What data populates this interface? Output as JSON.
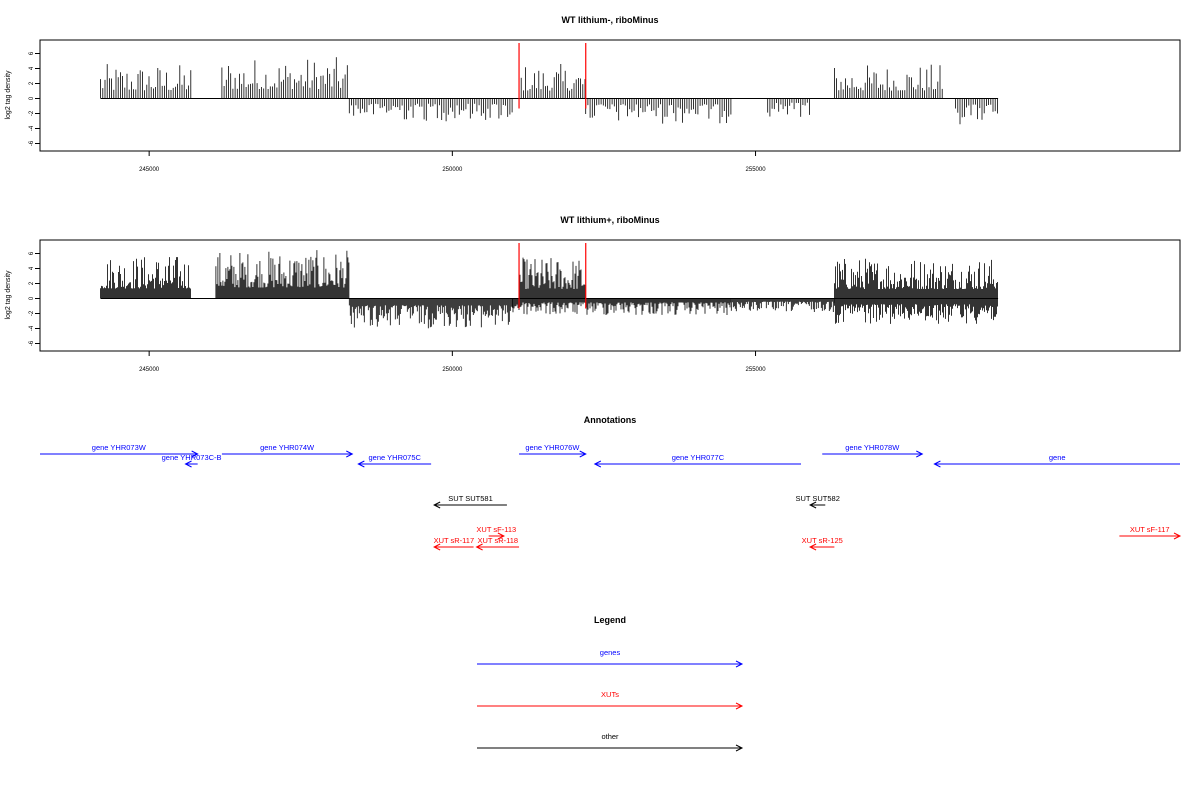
{
  "chart_data": [
    {
      "type": "bar",
      "title": "WT lithium-, riboMinus",
      "ylabel": "log2 tag density",
      "xlim": [
        243200,
        262000
      ],
      "ylim": [
        -7,
        7.8
      ],
      "x_ticks": [
        "245000",
        "250000",
        "255000"
      ],
      "y_ticks": [
        "6",
        "4",
        "2",
        "0",
        "-2",
        "-4",
        "-6"
      ],
      "baseline_range": [
        244200,
        259000
      ],
      "highlight_lines": [
        251100,
        252200
      ],
      "series": [
        {
          "strand": "+",
          "segments": [
            [
              244200,
              245700,
              3.0
            ],
            [
              246200,
              248300,
              3.6
            ],
            [
              251100,
              252200,
              3.0
            ],
            [
              256300,
              258100,
              3.0
            ]
          ]
        },
        {
          "strand": "-",
          "segments": [
            [
              248300,
              251000,
              -2.0
            ],
            [
              252200,
              254600,
              -2.2
            ],
            [
              255200,
              255900,
              -1.6
            ],
            [
              258300,
              259000,
              -2.3
            ]
          ]
        }
      ]
    },
    {
      "type": "bar",
      "title": "WT lithium+, riboMinus",
      "ylabel": "log2 tag density",
      "xlim": [
        243200,
        262000
      ],
      "ylim": [
        -7,
        7.8
      ],
      "x_ticks": [
        "245000",
        "250000",
        "255000"
      ],
      "y_ticks": [
        "6",
        "4",
        "2",
        "0",
        "-2",
        "-4",
        "-6"
      ],
      "baseline_range": [
        244200,
        259000
      ],
      "highlight_lines": [
        251100,
        252200
      ],
      "series": [
        {
          "strand": "+",
          "segments": [
            [
              244200,
              245700,
              3.8
            ],
            [
              246100,
              248300,
              4.2
            ],
            [
              251100,
              252200,
              3.6
            ],
            [
              256300,
              259000,
              3.6
            ]
          ]
        },
        {
          "strand": "-",
          "segments": [
            [
              248300,
              251000,
              -2.6
            ],
            [
              251000,
              254600,
              -1.5
            ],
            [
              254600,
              256300,
              -1.2
            ],
            [
              256300,
              259000,
              -2.2
            ]
          ]
        }
      ]
    }
  ],
  "annotations": {
    "title": "Annotations",
    "items": [
      {
        "label": "gene YHR073W",
        "type": "gene",
        "strand": "+",
        "x1": 243200,
        "x2": 245800,
        "row": 0
      },
      {
        "label": "gene YHR073C-B",
        "type": "gene",
        "strand": "-",
        "x1": 245600,
        "x2": 245800,
        "row": 1
      },
      {
        "label": "gene YHR074W",
        "type": "gene",
        "strand": "+",
        "x1": 246200,
        "x2": 248350,
        "row": 0
      },
      {
        "label": "gene YHR075C",
        "type": "gene",
        "strand": "-",
        "x1": 248450,
        "x2": 249650,
        "row": 1
      },
      {
        "label": "gene YHR076W",
        "type": "gene",
        "strand": "+",
        "x1": 251100,
        "x2": 252200,
        "row": 0
      },
      {
        "label": "gene YHR077C",
        "type": "gene",
        "strand": "-",
        "x1": 252350,
        "x2": 255750,
        "row": 1
      },
      {
        "label": "gene YHR078W",
        "type": "gene",
        "strand": "+",
        "x1": 256100,
        "x2": 257750,
        "row": 0
      },
      {
        "label": "gene",
        "type": "gene",
        "strand": "-",
        "x1": 257950,
        "x2": 262000,
        "row": 1
      },
      {
        "label": "SUT SUT581",
        "type": "other",
        "strand": "-",
        "x1": 249700,
        "x2": 250900,
        "row": 3
      },
      {
        "label": "SUT SUT582",
        "type": "other",
        "strand": "-",
        "x1": 255900,
        "x2": 256150,
        "row": 3
      },
      {
        "label": "XUT sF-113",
        "type": "XUT",
        "strand": "+",
        "x1": 250600,
        "x2": 250850,
        "row": 5
      },
      {
        "label": "XUT sR-117",
        "type": "XUT",
        "strand": "-",
        "x1": 249700,
        "x2": 250350,
        "row": 6
      },
      {
        "label": "XUT sR-118",
        "type": "XUT",
        "strand": "-",
        "x1": 250400,
        "x2": 251100,
        "row": 6
      },
      {
        "label": "XUT sR-125",
        "type": "XUT",
        "strand": "-",
        "x1": 255900,
        "x2": 256300,
        "row": 6
      },
      {
        "label": "XUT sF-117",
        "type": "XUT",
        "strand": "+",
        "x1": 261000,
        "x2": 262000,
        "row": 5
      }
    ]
  },
  "legend": {
    "title": "Legend",
    "items": [
      {
        "label": "genes",
        "type": "gene"
      },
      {
        "label": "XUTs",
        "type": "XUT"
      },
      {
        "label": "other",
        "type": "other"
      }
    ]
  },
  "colors": {
    "gene": "#0000ff",
    "XUT": "#ff0000",
    "other": "#000000",
    "highlight": "#ff0000",
    "bars": "#000000"
  }
}
